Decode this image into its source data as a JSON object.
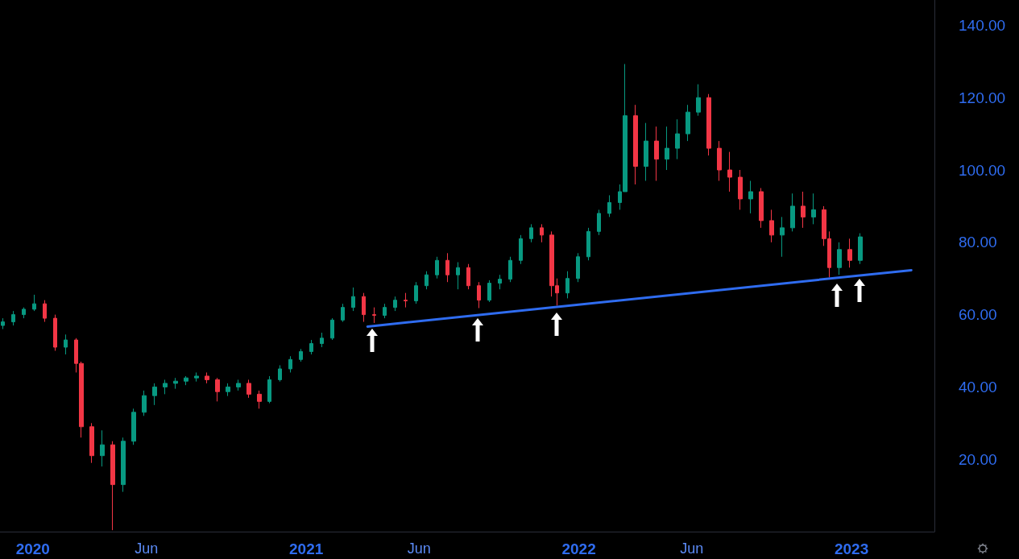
{
  "chart_data": {
    "type": "candlestick",
    "grid": false,
    "xlim": [
      "2019-11-18",
      "2023-04-22"
    ],
    "ylim": [
      0,
      147
    ],
    "xticks": [
      {
        "value": "2020-01-01",
        "label": "2020"
      },
      {
        "value": "2020-06-01",
        "label": "Jun"
      },
      {
        "value": "2021-01-01",
        "label": "2021"
      },
      {
        "value": "2021-06-01",
        "label": "Jun"
      },
      {
        "value": "2022-01-01",
        "label": "2022"
      },
      {
        "value": "2022-06-01",
        "label": "Jun"
      },
      {
        "value": "2023-01-01",
        "label": "2023"
      }
    ],
    "yticks": [
      {
        "value": 20,
        "label": "20.00"
      },
      {
        "value": 40,
        "label": "40.00"
      },
      {
        "value": 60,
        "label": "60.00"
      },
      {
        "value": 80,
        "label": "80.00"
      },
      {
        "value": 100,
        "label": "100.00"
      },
      {
        "value": 120,
        "label": "120.00"
      },
      {
        "value": 140,
        "label": "140.00"
      }
    ],
    "x": [
      "2019-11-22",
      "2019-12-06",
      "2019-12-20",
      "2020-01-03",
      "2020-01-17",
      "2020-01-31",
      "2020-02-14",
      "2020-02-28",
      "2020-03-06",
      "2020-03-20",
      "2020-04-03",
      "2020-04-17",
      "2020-05-01",
      "2020-05-15",
      "2020-05-29",
      "2020-06-12",
      "2020-06-26",
      "2020-07-10",
      "2020-07-24",
      "2020-08-07",
      "2020-08-21",
      "2020-09-04",
      "2020-09-18",
      "2020-10-02",
      "2020-10-16",
      "2020-10-30",
      "2020-11-13",
      "2020-11-27",
      "2020-12-11",
      "2020-12-25",
      "2021-01-08",
      "2021-01-22",
      "2021-02-05",
      "2021-02-19",
      "2021-03-05",
      "2021-03-19",
      "2021-04-02",
      "2021-04-16",
      "2021-04-30",
      "2021-05-14",
      "2021-05-28",
      "2021-06-11",
      "2021-06-25",
      "2021-07-09",
      "2021-07-23",
      "2021-08-06",
      "2021-08-20",
      "2021-09-03",
      "2021-09-17",
      "2021-10-01",
      "2021-10-15",
      "2021-10-29",
      "2021-11-12",
      "2021-11-26",
      "2021-12-03",
      "2021-12-17",
      "2021-12-31",
      "2022-01-14",
      "2022-01-28",
      "2022-02-11",
      "2022-02-25",
      "2022-03-04",
      "2022-03-18",
      "2022-04-01",
      "2022-04-15",
      "2022-04-29",
      "2022-05-13",
      "2022-05-27",
      "2022-06-10",
      "2022-06-24",
      "2022-07-08",
      "2022-07-22",
      "2022-08-05",
      "2022-08-19",
      "2022-09-02",
      "2022-09-16",
      "2022-09-30",
      "2022-10-14",
      "2022-10-28",
      "2022-11-11",
      "2022-11-25",
      "2022-12-02",
      "2022-12-16",
      "2022-12-30",
      "2023-01-13"
    ],
    "ohlc": [
      [
        57,
        59,
        56,
        58
      ],
      [
        58,
        61,
        57,
        60
      ],
      [
        60,
        62,
        59,
        61.5
      ],
      [
        61.5,
        65.5,
        61,
        63
      ],
      [
        63,
        64,
        58,
        59
      ],
      [
        59,
        60,
        50,
        51
      ],
      [
        51,
        54.5,
        49,
        53
      ],
      [
        53,
        53.5,
        44,
        46.5
      ],
      [
        46.5,
        47,
        26,
        29
      ],
      [
        29,
        30,
        19,
        21
      ],
      [
        21,
        28,
        18,
        24
      ],
      [
        24,
        25,
        0.4,
        13
      ],
      [
        13,
        26,
        11,
        25
      ],
      [
        25,
        34,
        24,
        33
      ],
      [
        33,
        39,
        32,
        37.6
      ],
      [
        37.6,
        41,
        35,
        40
      ],
      [
        40,
        42,
        38,
        41
      ],
      [
        41,
        42.5,
        39.5,
        41.6
      ],
      [
        41.6,
        43,
        40.5,
        42.5
      ],
      [
        42.5,
        44,
        41.5,
        43
      ],
      [
        43,
        44,
        41,
        42
      ],
      [
        42,
        42.5,
        36,
        38.7
      ],
      [
        38.7,
        41,
        37.5,
        40
      ],
      [
        40,
        42,
        39,
        41
      ],
      [
        41,
        42,
        37,
        38
      ],
      [
        38,
        39,
        34,
        36
      ],
      [
        36,
        43,
        35.5,
        42
      ],
      [
        42,
        46,
        41.5,
        45
      ],
      [
        45,
        48.5,
        44,
        47.6
      ],
      [
        47.6,
        50.5,
        47,
        49.8
      ],
      [
        49.8,
        53,
        49,
        52
      ],
      [
        52,
        55,
        51,
        53.5
      ],
      [
        53.5,
        59,
        53,
        58.5
      ],
      [
        58.5,
        63,
        58,
        62
      ],
      [
        62,
        67.5,
        61,
        65
      ],
      [
        65,
        66,
        58,
        60
      ],
      [
        60,
        62,
        57.7,
        59.8
      ],
      [
        59.8,
        63,
        59,
        62
      ],
      [
        62,
        65,
        61,
        64
      ],
      [
        64,
        66,
        62,
        63.8
      ],
      [
        63.8,
        69,
        63,
        68
      ],
      [
        68,
        72,
        67,
        71
      ],
      [
        71,
        76,
        70,
        75
      ],
      [
        75,
        77,
        69,
        71
      ],
      [
        71,
        74.5,
        67,
        73
      ],
      [
        73,
        74,
        67,
        68
      ],
      [
        68,
        69,
        61.8,
        64
      ],
      [
        64,
        69.5,
        63.5,
        68.7
      ],
      [
        68.7,
        71,
        67,
        69.8
      ],
      [
        69.8,
        76,
        69,
        75
      ],
      [
        75,
        82,
        74,
        81
      ],
      [
        81,
        85,
        80,
        84
      ],
      [
        84,
        85,
        80,
        82
      ],
      [
        82,
        83,
        65,
        68
      ],
      [
        68,
        70,
        62.5,
        66
      ],
      [
        66,
        72,
        64.5,
        70
      ],
      [
        70,
        77,
        69,
        76
      ],
      [
        76,
        84,
        75,
        83
      ],
      [
        83,
        89,
        82,
        88
      ],
      [
        88,
        93,
        87,
        91
      ],
      [
        91,
        96,
        89,
        94
      ],
      [
        94,
        129.3,
        94,
        115
      ],
      [
        115,
        118,
        96,
        101
      ],
      [
        101,
        113,
        97,
        108
      ],
      [
        108,
        112,
        97,
        103
      ],
      [
        103,
        112,
        100,
        106
      ],
      [
        106,
        114,
        103,
        110
      ],
      [
        110,
        118,
        108,
        116
      ],
      [
        116,
        123.7,
        115,
        120
      ],
      [
        120,
        121,
        104,
        106
      ],
      [
        106,
        108,
        97,
        100
      ],
      [
        100,
        105,
        94,
        98
      ],
      [
        98,
        100,
        89,
        92
      ],
      [
        92,
        97,
        88,
        94
      ],
      [
        94,
        95,
        84,
        86
      ],
      [
        86,
        89,
        80,
        82
      ],
      [
        82,
        87,
        76,
        84
      ],
      [
        84,
        93.5,
        83,
        90
      ],
      [
        90,
        94,
        84,
        87
      ],
      [
        87,
        93.5,
        85,
        89
      ],
      [
        89,
        90,
        79,
        81
      ],
      [
        81,
        83,
        70.3,
        73
      ],
      [
        73,
        80,
        71,
        78
      ],
      [
        78,
        81,
        73,
        75
      ],
      [
        75,
        82.5,
        74,
        81.5
      ]
    ],
    "series": [
      {
        "type": "line",
        "color": "#2f6cf0",
        "x": [
          "2021-03-24",
          "2023-03-22"
        ],
        "values": [
          56.7,
          72.3
        ]
      }
    ]
  }
}
